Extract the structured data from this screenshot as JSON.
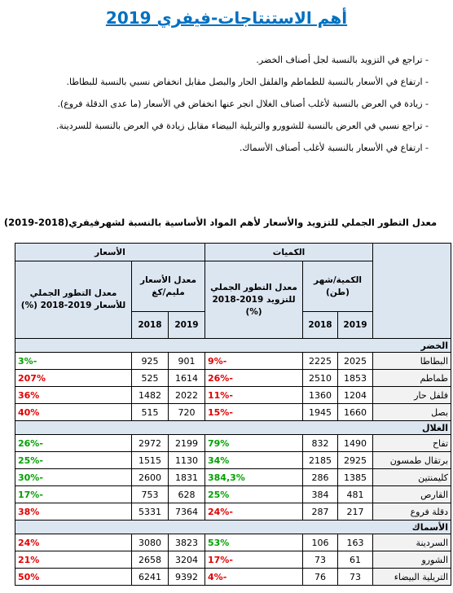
{
  "header": {
    "title": "أهم الاستنتاجات-فيفري 2019"
  },
  "bullets": [
    "- تراجع في التزويد بالنسبة لجل أصناف الخضر.",
    "- ارتفاع في الأسعار بالنسبة للطماطم والفلفل الحار والبصل مقابل انخفاض نسبي بالنسبة للبطاطا.",
    "- زيادة في العرض بالنسبة لأغلب أصناف الغلال انجر عنها انخفاض في الأسعار (ما عدى الدقلة فروع).",
    "- تراجع نسبي في العرض بالنسبة للشوورو والتريلية البيضاء مقابل زيادة في العرض بالنسبة للسردينة.",
    "- ارتفاع في الأسعار بالنسبة لأغلب أصناف الأسماك."
  ],
  "table": {
    "title": "معدل التطور الجملي للتزويد والأسعار لأهم المواد الأساسية بالنسبة لشهرفيفري(2018-2019)",
    "headers": {
      "quantities": "الكميات",
      "prices": "الأسعار",
      "qty_unit": "الكمية/شهر (طن)",
      "qty_change": "معدل التطور الجملي للتزويد 2019-2018 (%)",
      "price_unit": "معدل الأسعار مليم/كغ",
      "price_change": "معدل التطور الجملي للأسعار 2019-2018 (%)",
      "years": [
        "2019",
        "2018",
        "2019",
        "2018"
      ]
    },
    "sections": [
      {
        "name": "الخضر",
        "rows": [
          [
            "البطاطا",
            "2025",
            "2225",
            "-9%",
            "901",
            "925",
            "-3%"
          ],
          [
            "طماطم",
            "1853",
            "2510",
            "-26%",
            "1614",
            "525",
            "207%"
          ],
          [
            "فلفل حار",
            "1204",
            "1360",
            "-11%",
            "2022",
            "1482",
            "36%"
          ],
          [
            "بصل",
            "1660",
            "1945",
            "-15%",
            "720",
            "515",
            "40%"
          ]
        ]
      },
      {
        "name": "الغلال",
        "rows": [
          [
            "تفاح",
            "1490",
            "832",
            "79%",
            "2199",
            "2972",
            "-26%"
          ],
          [
            "برتقال طمسون",
            "2925",
            "2185",
            "34%",
            "1130",
            "1515",
            "-25%"
          ],
          [
            "كليمنتين",
            "1385",
            "286",
            "384,3%",
            "1831",
            "2600",
            "-30%"
          ],
          [
            "القارص",
            "481",
            "384",
            "25%",
            "628",
            "753",
            "-17%"
          ],
          [
            "دقلة فروع",
            "217",
            "287",
            "-24%",
            "7364",
            "5331",
            "38%"
          ]
        ]
      },
      {
        "name": "الأسماك",
        "rows": [
          [
            "السردينة",
            "163",
            "106",
            "53%",
            "3823",
            "3080",
            "24%"
          ],
          [
            "الشورو",
            "61",
            "73",
            "-17%",
            "3204",
            "2658",
            "21%"
          ],
          [
            "التريلية البيضاء",
            "73",
            "76",
            "-4%",
            "9392",
            "6241",
            "50%"
          ]
        ]
      }
    ]
  }
}
